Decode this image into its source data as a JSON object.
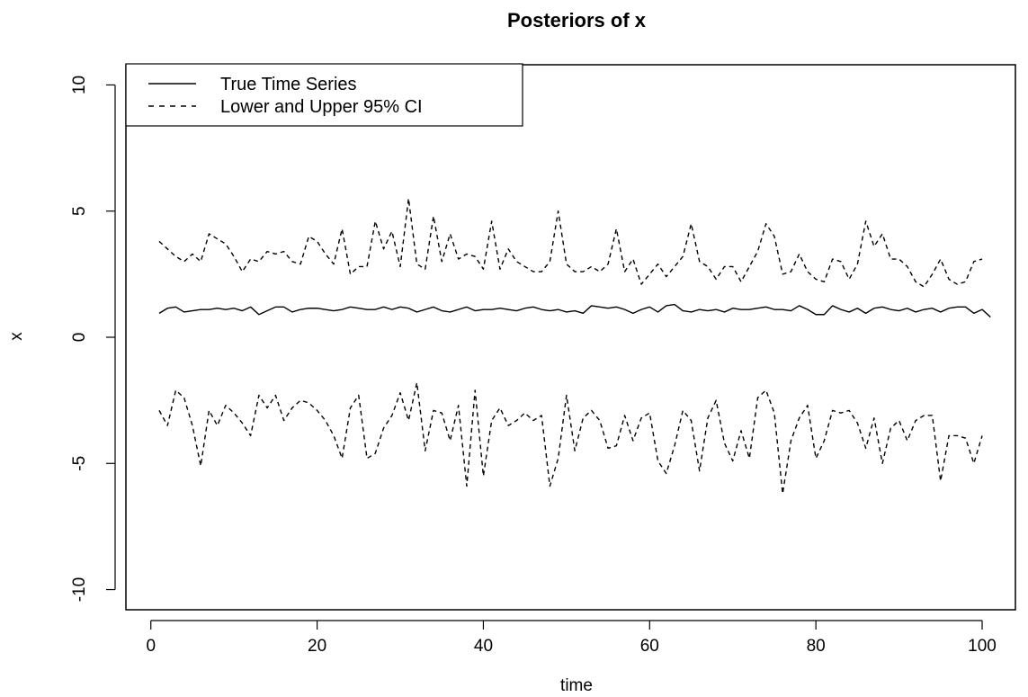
{
  "chart_data": {
    "type": "line",
    "title": "Posteriors of x",
    "xlabel": "time",
    "ylabel": "x",
    "xlim": [
      -3,
      104
    ],
    "ylim": [
      -10.8,
      10.8
    ],
    "xticks": [
      0,
      20,
      40,
      60,
      80,
      100
    ],
    "yticks": [
      -10,
      -5,
      0,
      5,
      10
    ],
    "grid": false,
    "legend_position": "top-left",
    "legend": [
      {
        "label": "True Time Series",
        "style": "solid"
      },
      {
        "label": "Lower and Upper 95% CI",
        "style": "dashed"
      }
    ],
    "series": [
      {
        "name": "True Time Series",
        "style": "solid",
        "x_start": 1,
        "values": [
          0.95,
          1.15,
          1.2,
          1.0,
          1.05,
          1.1,
          1.1,
          1.15,
          1.1,
          1.15,
          1.05,
          1.2,
          0.9,
          1.05,
          1.2,
          1.2,
          1.0,
          1.1,
          1.15,
          1.15,
          1.1,
          1.05,
          1.1,
          1.2,
          1.15,
          1.1,
          1.1,
          1.2,
          1.1,
          1.2,
          1.15,
          1.0,
          1.1,
          1.2,
          1.05,
          1.0,
          1.1,
          1.2,
          1.05,
          1.1,
          1.1,
          1.15,
          1.1,
          1.05,
          1.15,
          1.2,
          1.1,
          1.05,
          1.1,
          1.0,
          1.05,
          0.95,
          1.25,
          1.2,
          1.15,
          1.2,
          1.1,
          0.95,
          1.1,
          1.2,
          1.0,
          1.25,
          1.3,
          1.05,
          1.0,
          1.1,
          1.05,
          1.1,
          1.0,
          1.15,
          1.1,
          1.1,
          1.15,
          1.2,
          1.1,
          1.1,
          1.05,
          1.25,
          1.1,
          0.9,
          0.9,
          1.25,
          1.1,
          1.0,
          1.15,
          0.95,
          1.15,
          1.2,
          1.1,
          1.05,
          1.15,
          1.0,
          1.1,
          1.15,
          1.0,
          1.15,
          1.2,
          1.2,
          0.95,
          1.1,
          0.8
        ]
      },
      {
        "name": "Upper 95% CI",
        "style": "dashed",
        "x_start": 1,
        "values": [
          3.8,
          3.5,
          3.2,
          3.0,
          3.3,
          3.0,
          4.1,
          3.9,
          3.7,
          3.2,
          2.6,
          3.1,
          3.0,
          3.4,
          3.3,
          3.4,
          3.0,
          2.9,
          4.0,
          3.8,
          3.3,
          2.9,
          4.3,
          2.5,
          2.8,
          2.8,
          4.6,
          3.5,
          4.2,
          2.8,
          5.5,
          2.9,
          2.7,
          4.8,
          3.0,
          4.1,
          3.1,
          3.3,
          3.2,
          2.7,
          4.6,
          2.7,
          3.5,
          3.0,
          2.8,
          2.6,
          2.6,
          3.0,
          5.0,
          2.9,
          2.6,
          2.6,
          2.8,
          2.6,
          2.9,
          4.3,
          2.6,
          3.1,
          2.1,
          2.5,
          2.9,
          2.4,
          2.8,
          3.2,
          4.5,
          3.0,
          2.8,
          2.3,
          2.8,
          2.8,
          2.2,
          2.8,
          3.4,
          4.5,
          4.0,
          2.5,
          2.6,
          3.3,
          2.6,
          2.3,
          2.2,
          3.1,
          3.0,
          2.3,
          2.9,
          4.6,
          3.6,
          4.1,
          3.1,
          3.1,
          2.8,
          2.2,
          2.0,
          2.5,
          3.1,
          2.3,
          2.1,
          2.2,
          3.0,
          3.1
        ]
      },
      {
        "name": "Lower 95% CI",
        "style": "dashed",
        "x_start": 1,
        "values": [
          -2.9,
          -3.5,
          -2.1,
          -2.4,
          -3.5,
          -5.1,
          -2.9,
          -3.5,
          -2.7,
          -3.0,
          -3.4,
          -3.9,
          -2.3,
          -2.8,
          -2.3,
          -3.3,
          -2.8,
          -2.5,
          -2.6,
          -2.9,
          -3.3,
          -3.9,
          -4.8,
          -2.8,
          -2.3,
          -4.8,
          -4.6,
          -3.6,
          -3.1,
          -2.2,
          -3.3,
          -1.8,
          -4.5,
          -2.9,
          -3.0,
          -4.1,
          -2.7,
          -5.9,
          -2.1,
          -5.5,
          -3.3,
          -2.8,
          -3.5,
          -3.3,
          -3.0,
          -3.3,
          -3.1,
          -5.9,
          -4.8,
          -2.3,
          -4.5,
          -3.2,
          -2.9,
          -3.3,
          -4.4,
          -4.3,
          -3.1,
          -4.1,
          -3.2,
          -3.0,
          -4.9,
          -5.4,
          -4.3,
          -2.9,
          -3.3,
          -5.3,
          -3.2,
          -2.5,
          -4.2,
          -4.9,
          -3.7,
          -4.8,
          -2.4,
          -2.1,
          -3.0,
          -6.2,
          -4.1,
          -3.2,
          -2.7,
          -4.8,
          -4.1,
          -2.9,
          -3.0,
          -2.9,
          -3.4,
          -4.4,
          -3.2,
          -5.0,
          -3.6,
          -3.3,
          -4.1,
          -3.3,
          -3.1,
          -3.1,
          -5.7,
          -3.9,
          -3.9,
          -4.0,
          -5.0,
          -3.9
        ]
      }
    ]
  }
}
